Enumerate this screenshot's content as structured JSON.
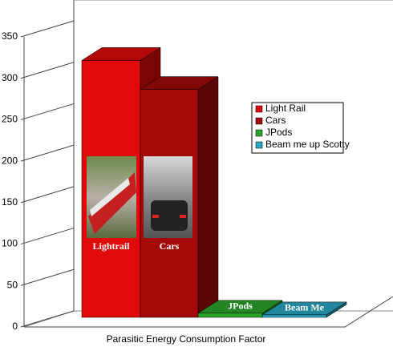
{
  "chart_data": {
    "type": "bar3d",
    "x_label": "Parasitic Energy Consumption Factor",
    "ylim": [
      0,
      350
    ],
    "yticks": [
      0,
      50,
      100,
      150,
      200,
      250,
      300,
      350
    ],
    "legend_position": "right",
    "series": [
      {
        "name": "Light Rail",
        "color": "#e00a0a",
        "values": [
          310
        ],
        "label": "Lightrail"
      },
      {
        "name": "Cars",
        "color": "#a40a0a",
        "values": [
          275
        ],
        "label": "Cars"
      },
      {
        "name": "JPods",
        "color": "#2aa52a",
        "values": [
          5
        ],
        "label": "JPods"
      },
      {
        "name": "Beam me up Scotty",
        "color": "#2aa8c4",
        "values": [
          3
        ],
        "label": "Beam Me"
      }
    ]
  }
}
